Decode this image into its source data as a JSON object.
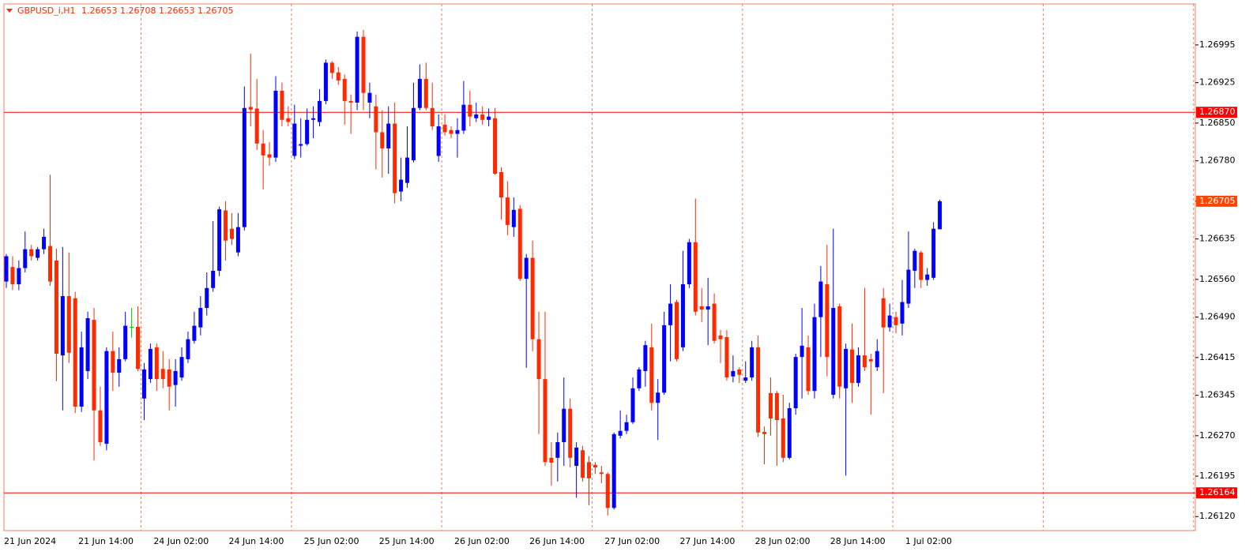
{
  "chart_data": {
    "type": "candlestick",
    "title": "GBPUSD_i,H1",
    "categories": [
      "21 Jun 2024",
      null,
      null,
      null,
      null,
      null,
      null,
      null,
      null,
      null,
      null,
      null,
      "21 Jun 14:00",
      null,
      null,
      null,
      null,
      null,
      null,
      null,
      null,
      null,
      null,
      null,
      "24 Jun 02:00",
      null,
      null,
      null,
      null,
      null,
      null,
      null,
      null,
      null,
      null,
      null,
      "24 Jun 14:00",
      null,
      null,
      null,
      null,
      null,
      null,
      null,
      null,
      null,
      null,
      null,
      "25 Jun 02:00",
      null,
      null,
      null,
      null,
      null,
      null,
      null,
      null,
      null,
      null,
      null,
      "25 Jun 14:00",
      null,
      null,
      null,
      null,
      null,
      null,
      null,
      null,
      null,
      null,
      null,
      "26 Jun 02:00",
      null,
      null,
      null,
      null,
      null,
      null,
      null,
      null,
      null,
      null,
      null,
      "26 Jun 14:00",
      null,
      null,
      null,
      null,
      null,
      null,
      null,
      null,
      null,
      null,
      null,
      "27 Jun 02:00",
      null,
      null,
      null,
      null,
      null,
      null,
      null,
      null,
      null,
      null,
      null,
      "27 Jun 14:00",
      null,
      null,
      null,
      null,
      null,
      null,
      null,
      null,
      null,
      null,
      null,
      "28 Jun 02:00",
      null,
      null,
      null,
      null,
      null,
      null,
      null,
      null,
      null,
      null,
      null,
      "28 Jun 14:00",
      null,
      null,
      null,
      null,
      null,
      null,
      null,
      null,
      null,
      null,
      null,
      "1 Jul 02:00",
      null,
      null,
      null,
      null,
      null
    ],
    "open": [
      1.26556,
      1.26583,
      1.26551,
      1.26581,
      1.26616,
      1.266,
      1.26616,
      1.26622,
      1.26595,
      1.26419,
      1.26529,
      1.26525,
      1.26324,
      1.2639,
      1.26485,
      1.26317,
      1.26255,
      1.26427,
      1.26387,
      1.26412,
      1.26472,
      1.26472,
      1.26339,
      1.26375,
      1.26434,
      1.26394,
      1.26393,
      1.26364,
      1.26378,
      1.26412,
      1.26446,
      1.26471,
      1.26507,
      1.26544,
      1.26576,
      1.26688,
      1.26654,
      1.2661,
      1.26657,
      1.2688,
      1.26877,
      1.26812,
      1.26792,
      1.26786,
      1.2691,
      1.26859,
      1.26789,
      1.26808,
      1.26811,
      1.26856,
      1.26852,
      1.26891,
      1.26962,
      1.26944,
      1.26932,
      1.26891,
      1.26888,
      1.2701,
      1.26888,
      1.26881,
      1.26833,
      1.26803,
      1.26849,
      1.26723,
      1.26739,
      1.26781,
      1.26878,
      1.26932,
      1.26878,
      1.26789,
      1.26847,
      1.26837,
      1.2683,
      1.26836,
      1.26884,
      1.26859,
      1.26866,
      1.26856,
      1.26859,
      1.26759,
      1.26712,
      1.26657,
      1.26691,
      1.26561,
      1.266,
      1.26449,
      1.26375,
      1.26229,
      1.26229,
      1.26258,
      1.2632,
      1.26214,
      1.26243,
      1.26221,
      1.26216,
      1.26202,
      1.26199,
      1.26136,
      1.2627,
      1.26279,
      1.26295,
      1.26358,
      1.2639,
      1.26434,
      1.26331,
      1.2635,
      1.26475,
      1.26518,
      1.26434,
      1.26551,
      1.26629,
      1.2651,
      1.26504,
      1.26515,
      1.26456,
      1.26453,
      1.2638,
      1.26393,
      1.26372,
      1.26378,
      1.26434,
      1.26277,
      1.26349,
      1.26349,
      1.26302,
      1.26229,
      1.26321,
      1.26416,
      1.26434,
      1.26353,
      1.2649,
      1.26551,
      1.26346,
      1.2651,
      1.26358,
      1.2643,
      1.26368,
      1.26419,
      1.26412,
      1.26397,
      1.26525,
      1.26471,
      1.2649,
      1.26478,
      1.26515,
      1.26576,
      1.2661,
      1.26559,
      1.26563,
      1.26653
    ],
    "high": [
      1.26607,
      1.26603,
      1.26595,
      1.26649,
      1.26624,
      1.2662,
      1.26654,
      1.26754,
      1.26617,
      1.2662,
      1.2661,
      1.26537,
      1.26463,
      1.265,
      1.26507,
      1.26361,
      1.26434,
      1.26463,
      1.26434,
      1.265,
      1.26507,
      1.2651,
      1.26405,
      1.26441,
      1.26441,
      1.26427,
      1.26412,
      1.26412,
      1.26434,
      1.26463,
      1.265,
      1.26529,
      1.26573,
      1.26668,
      1.26695,
      1.26705,
      1.26683,
      1.26683,
      1.26918,
      1.26979,
      1.26932,
      1.26837,
      1.26815,
      1.26937,
      1.26925,
      1.26881,
      1.26884,
      1.26859,
      1.26877,
      1.26881,
      1.26913,
      1.26968,
      1.26965,
      1.26954,
      1.2694,
      1.26903,
      1.2702,
      1.27023,
      1.26925,
      1.26903,
      1.26874,
      1.26881,
      1.26888,
      1.26786,
      1.26844,
      1.26925,
      1.26959,
      1.26962,
      1.26925,
      1.26866,
      1.26866,
      1.26844,
      1.26859,
      1.26928,
      1.2691,
      1.26888,
      1.26881,
      1.26877,
      1.26878,
      1.26768,
      1.26742,
      1.26712,
      1.26698,
      1.26607,
      1.26632,
      1.265,
      1.265,
      1.26258,
      1.26276,
      1.26378,
      1.26339,
      1.26258,
      1.26251,
      1.26232,
      1.26221,
      1.26214,
      1.26202,
      1.26276,
      1.26317,
      1.26309,
      1.26378,
      1.26397,
      1.26446,
      1.26478,
      1.26375,
      1.265,
      1.26551,
      1.26522,
      1.26613,
      1.26635,
      1.2671,
      1.26544,
      1.26563,
      1.26534,
      1.26466,
      1.26466,
      1.26419,
      1.26397,
      1.26408,
      1.26446,
      1.26456,
      1.26287,
      1.26378,
      1.26353,
      1.26346,
      1.26331,
      1.26422,
      1.26507,
      1.26456,
      1.26515,
      1.26585,
      1.26624,
      1.26654,
      1.26515,
      1.26441,
      1.26478,
      1.26434,
      1.26544,
      1.26422,
      1.26449,
      1.26544,
      1.26515,
      1.265,
      1.26559,
      1.26649,
      1.26617,
      1.26613,
      1.26581,
      1.26666,
      1.26708
    ],
    "low": [
      1.26544,
      1.2654,
      1.2654,
      1.26573,
      1.26595,
      1.26595,
      1.26607,
      1.26548,
      1.26371,
      1.26317,
      1.26405,
      1.26312,
      1.26314,
      1.26375,
      1.26224,
      1.26251,
      1.26243,
      1.26353,
      1.26361,
      1.26408,
      1.26452,
      1.2639,
      1.26299,
      1.26368,
      1.26353,
      1.26358,
      1.26317,
      1.26324,
      1.26372,
      1.26405,
      1.26441,
      1.26456,
      1.26493,
      1.26537,
      1.26566,
      1.26595,
      1.26624,
      1.26603,
      1.26651,
      1.26844,
      1.268,
      1.26727,
      1.26771,
      1.26778,
      1.26844,
      1.26844,
      1.26783,
      1.26786,
      1.26808,
      1.26822,
      1.26844,
      1.26885,
      1.26932,
      1.26921,
      1.26847,
      1.2683,
      1.26874,
      1.26874,
      1.26859,
      1.26764,
      1.26749,
      1.26756,
      1.26701,
      1.26705,
      1.2673,
      1.26777,
      1.26874,
      1.26874,
      1.26837,
      1.26778,
      1.26827,
      1.26822,
      1.26786,
      1.2683,
      1.26844,
      1.26852,
      1.26847,
      1.26844,
      1.26754,
      1.26671,
      1.26642,
      1.26639,
      1.26557,
      1.26396,
      1.26427,
      1.26273,
      1.26214,
      1.26177,
      1.26185,
      1.26214,
      1.26211,
      1.26155,
      1.26185,
      1.26141,
      1.26199,
      1.26182,
      1.26122,
      1.26133,
      1.26265,
      1.26273,
      1.26292,
      1.26353,
      1.26361,
      1.26317,
      1.26262,
      1.26346,
      1.26408,
      1.26408,
      1.26427,
      1.26544,
      1.26493,
      1.26481,
      1.26438,
      1.26441,
      1.26405,
      1.26372,
      1.26369,
      1.26368,
      1.26368,
      1.26372,
      1.26268,
      1.26217,
      1.2627,
      1.26214,
      1.26221,
      1.26226,
      1.26309,
      1.26339,
      1.26346,
      1.26339,
      1.26416,
      1.2638,
      1.26339,
      1.26339,
      1.26196,
      1.26331,
      1.26361,
      1.2639,
      1.26309,
      1.2639,
      1.26349,
      1.26463,
      1.2646,
      1.26456,
      1.26507,
      1.26544,
      1.26544,
      1.26548,
      1.26559,
      1.26653
    ],
    "close": [
      1.26603,
      1.26551,
      1.26581,
      1.26616,
      1.26603,
      1.26616,
      1.26639,
      1.26556,
      1.26422,
      1.26529,
      1.26424,
      1.26324,
      1.26434,
      1.26488,
      1.26317,
      1.26258,
      1.26427,
      1.26387,
      1.26412,
      1.26474,
      1.26472,
      1.26394,
      1.26393,
      1.26431,
      1.26375,
      1.26375,
      1.26361,
      1.2639,
      1.26416,
      1.26449,
      1.26474,
      1.26507,
      1.26544,
      1.26576,
      1.2669,
      1.26632,
      1.26635,
      1.26657,
      1.26878,
      1.26875,
      1.26812,
      1.2679,
      1.26786,
      1.2691,
      1.26856,
      1.26852,
      1.26849,
      1.26811,
      1.26856,
      1.26859,
      1.26891,
      1.26962,
      1.26943,
      1.26929,
      1.26891,
      1.26888,
      1.2701,
      1.26906,
      1.26906,
      1.26833,
      1.26803,
      1.26849,
      1.2672,
      1.26745,
      1.26786,
      1.26878,
      1.26932,
      1.26878,
      1.26844,
      1.26844,
      1.26833,
      1.2683,
      1.26837,
      1.26884,
      1.26862,
      1.26866,
      1.26856,
      1.26862,
      1.26756,
      1.26712,
      1.26661,
      1.26689,
      1.26561,
      1.266,
      1.26449,
      1.26375,
      1.26221,
      1.2622,
      1.26258,
      1.2632,
      1.26229,
      1.26248,
      1.26192,
      1.26191,
      1.26211,
      1.26199,
      1.26136,
      1.26273,
      1.26279,
      1.26295,
      1.26358,
      1.26393,
      1.26438,
      1.26331,
      1.2635,
      1.26475,
      1.26515,
      1.26412,
      1.26551,
      1.26629,
      1.265,
      1.26504,
      1.2651,
      1.26446,
      1.26449,
      1.26378,
      1.2639,
      1.26383,
      1.26378,
      1.26434,
      1.26276,
      1.26273,
      1.26302,
      1.26299,
      1.26229,
      1.26321,
      1.26416,
      1.26437,
      1.26353,
      1.2649,
      1.26556,
      1.26416,
      1.26507,
      1.26361,
      1.26431,
      1.26368,
      1.26419,
      1.26397,
      1.26408,
      1.26427,
      1.26471,
      1.26493,
      1.26475,
      1.26518,
      1.26578,
      1.26613,
      1.26559,
      1.26569,
      1.26654,
      1.26705
    ],
    "ylim": [
      1.26094,
      1.27071
    ],
    "yticks": [
      1.26995,
      1.26925,
      {
        "value": 1.2685,
        "label": "1.26850"
      },
      {
        "value": 1.2678,
        "label": "1.26780"
      },
      1.26705,
      1.26635,
      {
        "value": 1.2656,
        "label": "1.26560"
      },
      {
        "value": 1.2649,
        "label": "1.26490"
      },
      1.26415,
      1.26345,
      {
        "value": 1.2627,
        "label": "1.26270"
      },
      1.26195,
      {
        "value": 1.2612,
        "label": "1.26120"
      }
    ],
    "hlines": [
      {
        "value": 1.2687,
        "label": "1.26870"
      },
      {
        "value": 1.26164,
        "label": "1.26164"
      }
    ],
    "grid": false,
    "bull_color": "#0000ff",
    "bear_color": "#ff2a00",
    "doji_color": "#00c800",
    "hline_color": "#ff0000",
    "last_price_color": "#ff4500"
  }
}
